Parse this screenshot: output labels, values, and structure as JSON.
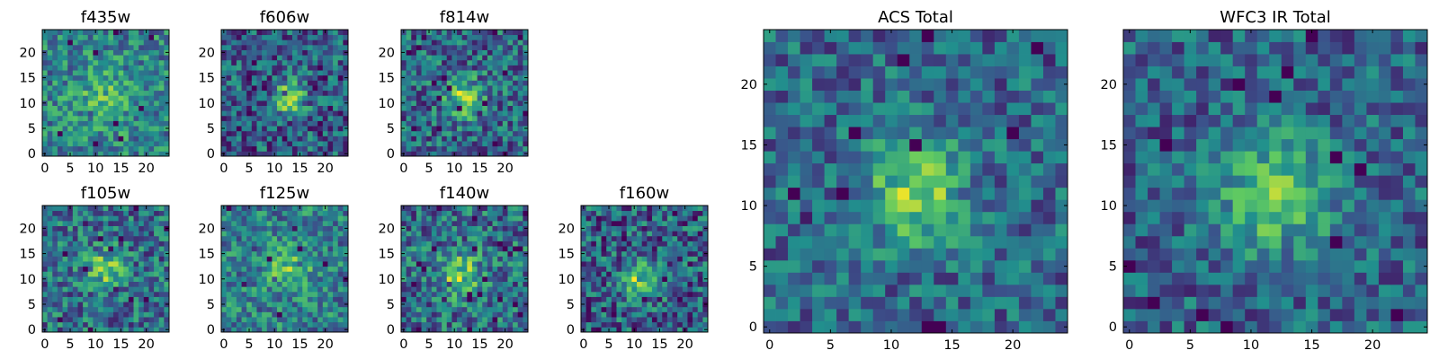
{
  "figure": {
    "colormap": "viridis",
    "colormap_stops": [
      "#440154",
      "#3b528b",
      "#21908d",
      "#5dc963",
      "#fde725"
    ]
  },
  "chart_data": [
    {
      "type": "heatmap",
      "title": "f435w",
      "grid_size": 25,
      "xlim": [
        0,
        24
      ],
      "ylim": [
        0,
        24
      ],
      "xticks": [
        "0",
        "5",
        "10",
        "15",
        "20"
      ],
      "yticks": [
        "0",
        "5",
        "10",
        "15",
        "20"
      ],
      "source_center": [
        12,
        11
      ],
      "peak_level": 0.22,
      "source_radius": 4.0,
      "background_level": 0.72,
      "noise_level": 0.25,
      "seed": 11
    },
    {
      "type": "heatmap",
      "title": "f606w",
      "grid_size": 25,
      "xlim": [
        0,
        24
      ],
      "ylim": [
        0,
        24
      ],
      "xticks": [
        "0",
        "5",
        "10",
        "15",
        "20"
      ],
      "yticks": [
        "0",
        "5",
        "10",
        "15",
        "20"
      ],
      "source_center": [
        13,
        11
      ],
      "peak_level": 0.5,
      "source_radius": 2.2,
      "background_level": 0.5,
      "noise_level": 0.28,
      "seed": 23
    },
    {
      "type": "heatmap",
      "title": "f814w",
      "grid_size": 25,
      "xlim": [
        0,
        24
      ],
      "ylim": [
        0,
        24
      ],
      "xticks": [
        "0",
        "5",
        "10",
        "15",
        "20"
      ],
      "yticks": [
        "0",
        "5",
        "10",
        "15",
        "20"
      ],
      "source_center": [
        12,
        11
      ],
      "peak_level": 0.48,
      "source_radius": 2.6,
      "background_level": 0.55,
      "noise_level": 0.28,
      "seed": 37
    },
    {
      "type": "heatmap",
      "title": "f105w",
      "grid_size": 25,
      "xlim": [
        0,
        24
      ],
      "ylim": [
        0,
        24
      ],
      "xticks": [
        "0",
        "5",
        "10",
        "15",
        "20"
      ],
      "yticks": [
        "0",
        "5",
        "10",
        "15",
        "20"
      ],
      "source_center": [
        12,
        12
      ],
      "peak_level": 0.38,
      "source_radius": 2.6,
      "background_level": 0.6,
      "noise_level": 0.27,
      "seed": 41
    },
    {
      "type": "heatmap",
      "title": "f125w",
      "grid_size": 25,
      "xlim": [
        0,
        24
      ],
      "ylim": [
        0,
        24
      ],
      "xticks": [
        "0",
        "5",
        "10",
        "15",
        "20"
      ],
      "yticks": [
        "0",
        "5",
        "10",
        "15",
        "20"
      ],
      "source_center": [
        13,
        12
      ],
      "peak_level": 0.3,
      "source_radius": 3.0,
      "background_level": 0.7,
      "noise_level": 0.25,
      "seed": 53
    },
    {
      "type": "heatmap",
      "title": "f140w",
      "grid_size": 25,
      "xlim": [
        0,
        24
      ],
      "ylim": [
        0,
        24
      ],
      "xticks": [
        "0",
        "5",
        "10",
        "15",
        "20"
      ],
      "yticks": [
        "0",
        "5",
        "10",
        "15",
        "20"
      ],
      "source_center": [
        11,
        11
      ],
      "peak_level": 0.42,
      "source_radius": 2.8,
      "background_level": 0.6,
      "noise_level": 0.28,
      "seed": 67
    },
    {
      "type": "heatmap",
      "title": "f160w",
      "grid_size": 25,
      "xlim": [
        0,
        24
      ],
      "ylim": [
        0,
        24
      ],
      "xticks": [
        "0",
        "5",
        "10",
        "15",
        "20"
      ],
      "yticks": [
        "0",
        "5",
        "10",
        "15",
        "20"
      ],
      "source_center": [
        11,
        10
      ],
      "peak_level": 0.5,
      "source_radius": 2.4,
      "background_level": 0.5,
      "noise_level": 0.3,
      "seed": 79
    },
    {
      "type": "heatmap",
      "title": "ACS Total",
      "grid_size": 25,
      "xlim": [
        0,
        24
      ],
      "ylim": [
        0,
        24
      ],
      "xticks": [
        "0",
        "5",
        "10",
        "15",
        "20"
      ],
      "yticks": [
        "0",
        "5",
        "10",
        "15",
        "20"
      ],
      "source_center": [
        12,
        11
      ],
      "peak_level": 0.48,
      "source_radius": 2.8,
      "background_level": 0.55,
      "noise_level": 0.22,
      "seed": 97
    },
    {
      "type": "heatmap",
      "title": "WFC3 IR Total",
      "grid_size": 25,
      "xlim": [
        0,
        24
      ],
      "ylim": [
        0,
        24
      ],
      "xticks": [
        "0",
        "5",
        "10",
        "15",
        "20"
      ],
      "yticks": [
        "0",
        "5",
        "10",
        "15",
        "20"
      ],
      "source_center": [
        12,
        11
      ],
      "peak_level": 0.5,
      "source_radius": 3.0,
      "background_level": 0.52,
      "noise_level": 0.22,
      "seed": 113
    }
  ]
}
